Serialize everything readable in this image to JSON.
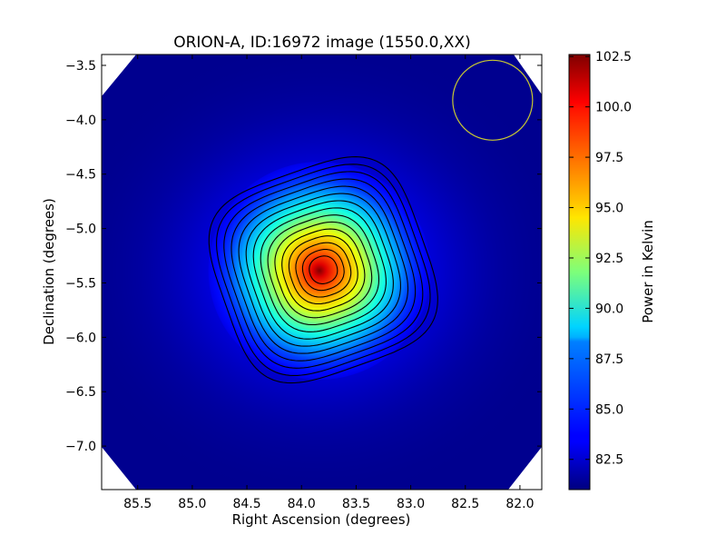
{
  "chart_data": {
    "type": "heatmap",
    "title": "ORION-A, ID:16972 image (1550.0,XX)",
    "xlabel": "Right Ascension (degrees)",
    "ylabel": "Declination (degrees)",
    "x_range": [
      85.83,
      81.8
    ],
    "y_range": [
      -7.4,
      -3.4
    ],
    "x_ticks": [
      "85.5",
      "85.0",
      "84.5",
      "84.0",
      "83.5",
      "83.0",
      "82.5",
      "82.0"
    ],
    "y_ticks": [
      "-3.5",
      "-4.0",
      "-4.5",
      "-5.0",
      "-5.5",
      "-6.0",
      "-6.5",
      "-7.0"
    ],
    "peak_position": {
      "ra": 83.8,
      "dec": -5.38
    },
    "beam_circle": {
      "ra": 82.25,
      "dec": -3.82
    },
    "contour_count": 15,
    "colormap": "jet",
    "grid": false,
    "colorbar": {
      "label": "Power in Kelvin",
      "min": 81.0,
      "max": 102.6,
      "ticks": [
        "82.5",
        "85.0",
        "87.5",
        "90.0",
        "92.5",
        "95.0",
        "97.5",
        "100.0",
        "102.5"
      ]
    },
    "colors": {
      "background": "#00008f",
      "beam_circle": "#c8c832",
      "contours": "#000000"
    }
  }
}
